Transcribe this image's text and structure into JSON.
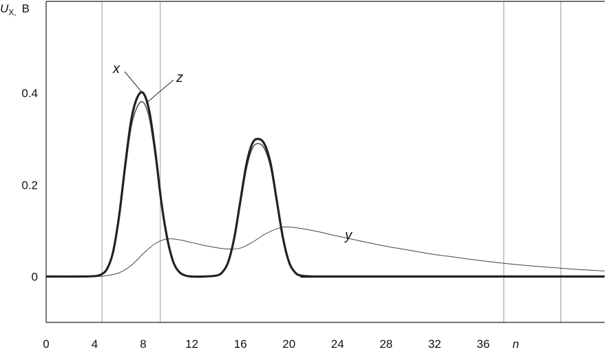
{
  "chart_data": {
    "type": "line",
    "ylabel": {
      "symbol": "U",
      "subscript": "X,",
      "unit": "В"
    },
    "xlabel": "n",
    "xlim": [
      0,
      46
    ],
    "ylim": [
      -0.1,
      0.6
    ],
    "x_ticks": [
      "0",
      "4",
      "8",
      "12",
      "16",
      "20",
      "24",
      "28",
      "32",
      "36"
    ],
    "x_tick_values": [
      0,
      4,
      8,
      12,
      16,
      20,
      24,
      28,
      32,
      36
    ],
    "y_ticks": [
      "0",
      "0.2",
      "0.4"
    ],
    "y_tick_values": [
      0,
      0.2,
      0.4
    ],
    "vertical_lines": [
      4.6,
      9.4,
      37.7,
      42.4
    ],
    "series": [
      {
        "name": "x",
        "x": [
          0,
          3,
          4,
          4.5,
          5,
          5.5,
          6,
          6.5,
          7,
          7.5,
          8,
          8.5,
          9,
          9.5,
          10,
          10.5,
          11,
          11.5,
          12,
          13,
          14,
          14.5,
          15,
          15.5,
          16,
          16.5,
          17,
          17.5,
          18,
          18.5,
          19,
          19.5,
          20,
          20.5,
          21,
          22,
          23,
          46
        ],
        "y": [
          0,
          0,
          0.001,
          0.004,
          0.016,
          0.052,
          0.13,
          0.24,
          0.34,
          0.39,
          0.4,
          0.36,
          0.27,
          0.16,
          0.08,
          0.03,
          0.009,
          0.002,
          0,
          0,
          0.002,
          0.009,
          0.032,
          0.085,
          0.165,
          0.245,
          0.291,
          0.3,
          0.288,
          0.245,
          0.165,
          0.085,
          0.032,
          0.009,
          0.002,
          0,
          0,
          0
        ]
      },
      {
        "name": "z",
        "x": [
          0,
          3,
          4,
          4.5,
          5,
          5.5,
          6,
          6.5,
          7,
          7.5,
          8,
          8.5,
          9,
          9.5,
          10,
          10.5,
          11,
          11.5,
          12,
          13,
          14,
          14.5,
          15,
          15.5,
          16,
          16.5,
          17,
          17.5,
          18,
          18.5,
          19,
          19.5,
          20,
          20.5,
          21,
          22,
          23,
          46
        ],
        "y": [
          0,
          0,
          0.001,
          0.004,
          0.016,
          0.05,
          0.125,
          0.23,
          0.325,
          0.37,
          0.38,
          0.345,
          0.26,
          0.155,
          0.078,
          0.03,
          0.009,
          0.002,
          0,
          0,
          0.002,
          0.009,
          0.031,
          0.082,
          0.158,
          0.235,
          0.28,
          0.29,
          0.278,
          0.236,
          0.16,
          0.083,
          0.031,
          0.009,
          0.002,
          0,
          0,
          0
        ]
      },
      {
        "name": "y",
        "x": [
          0,
          4,
          5,
          6,
          7,
          8,
          9,
          10,
          11,
          12,
          13,
          14,
          15,
          16,
          17,
          18,
          19,
          20,
          22,
          24,
          26,
          28,
          30,
          32,
          34,
          36,
          38,
          40,
          42,
          44,
          46
        ],
        "y": [
          0,
          0,
          0.002,
          0.008,
          0.024,
          0.05,
          0.072,
          0.082,
          0.08,
          0.074,
          0.068,
          0.063,
          0.06,
          0.062,
          0.075,
          0.092,
          0.104,
          0.108,
          0.1,
          0.088,
          0.077,
          0.066,
          0.057,
          0.048,
          0.041,
          0.034,
          0.028,
          0.023,
          0.019,
          0.015,
          0.012
        ]
      }
    ],
    "colors": {
      "x": "#222222",
      "z": "#555555",
      "y": "#444444",
      "grid": "#999999",
      "axis": "#222222"
    }
  }
}
